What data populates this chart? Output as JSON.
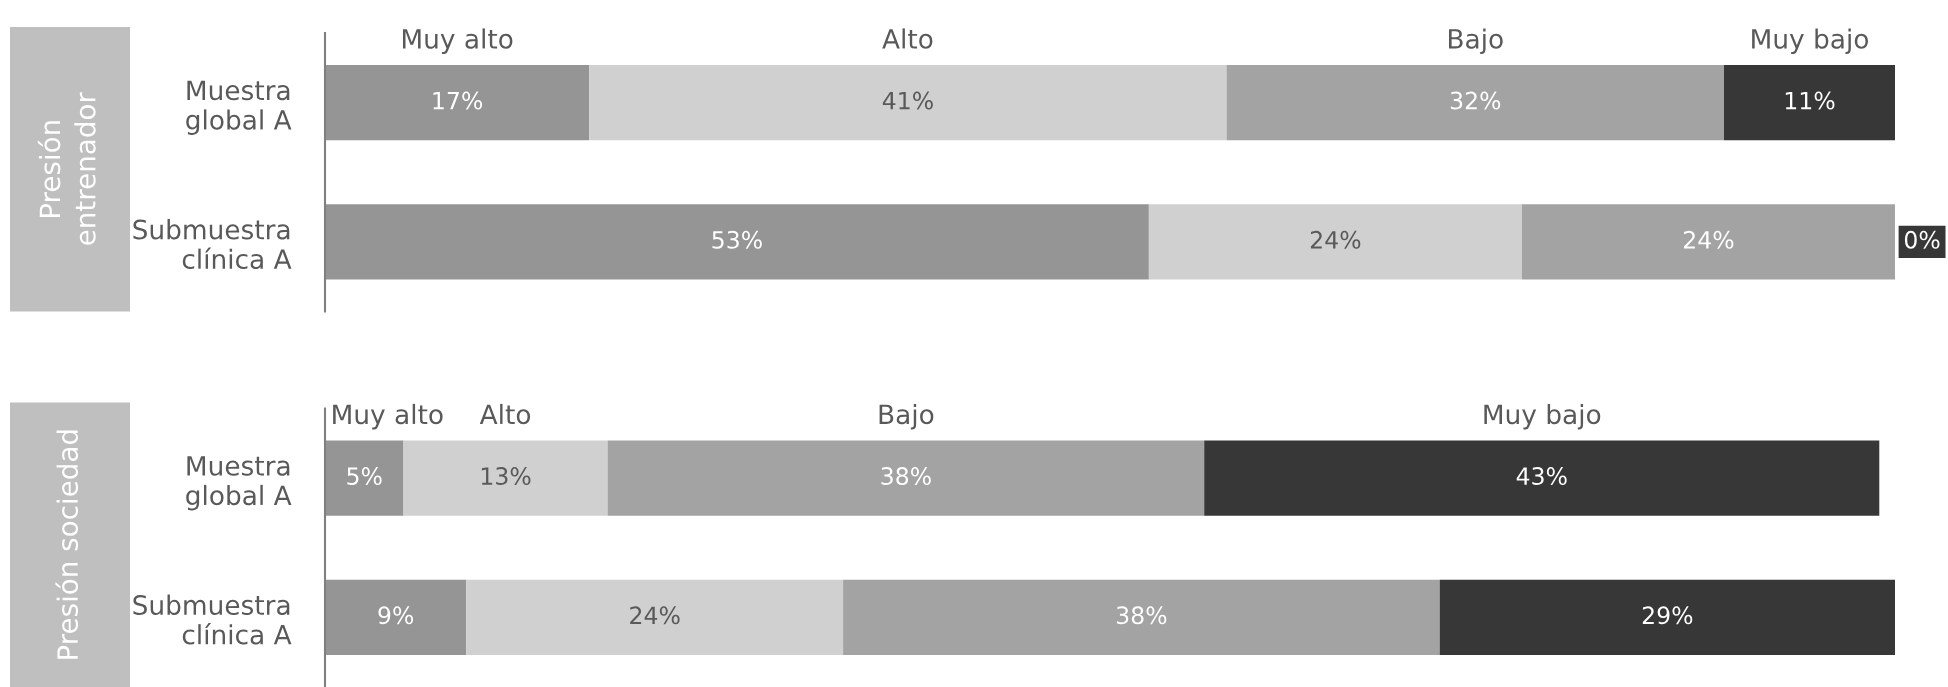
{
  "chart_data": [
    {
      "type": "bar",
      "orientation": "horizontal",
      "stacked": true,
      "ylabel": "Presión\nentrenador",
      "tick_labels": "y",
      "categories": [
        "Muestra\nglobal A",
        "Submuestra\nclínica A"
      ],
      "series": [
        {
          "name": "Muy alto",
          "color": "#959595",
          "values": [
            17,
            53
          ],
          "value_labels": [
            "17%",
            "53%"
          ]
        },
        {
          "name": "Alto",
          "color": "#d0d0d0",
          "values": [
            41,
            24
          ],
          "value_labels": [
            "41%",
            "24%"
          ]
        },
        {
          "name": "Bajo",
          "color": "#a3a3a3",
          "values": [
            32,
            24
          ],
          "value_labels": [
            "32%",
            "24%"
          ]
        },
        {
          "name": "Muy bajo",
          "color": "#373737",
          "values": [
            11,
            0
          ],
          "value_labels": [
            "11%",
            "0%"
          ]
        }
      ]
    },
    {
      "type": "bar",
      "orientation": "horizontal",
      "stacked": true,
      "ylabel": "Presión sociedad",
      "tick_labels": "y",
      "categories": [
        "Muestra\nglobal A",
        "Submuestra\nclínica A"
      ],
      "series": [
        {
          "name": "Muy alto",
          "color": "#959595",
          "values": [
            5,
            9
          ],
          "value_labels": [
            "5%",
            "9%"
          ]
        },
        {
          "name": "Alto",
          "color": "#d0d0d0",
          "values": [
            13,
            24
          ],
          "value_labels": [
            "13%",
            "24%"
          ]
        },
        {
          "name": "Bajo",
          "color": "#a3a3a3",
          "values": [
            38,
            38
          ],
          "value_labels": [
            "38%",
            "38%"
          ]
        },
        {
          "name": "Muy bajo",
          "color": "#373737",
          "values": [
            43,
            29
          ],
          "value_labels": [
            "43%",
            "29%"
          ]
        }
      ]
    }
  ]
}
